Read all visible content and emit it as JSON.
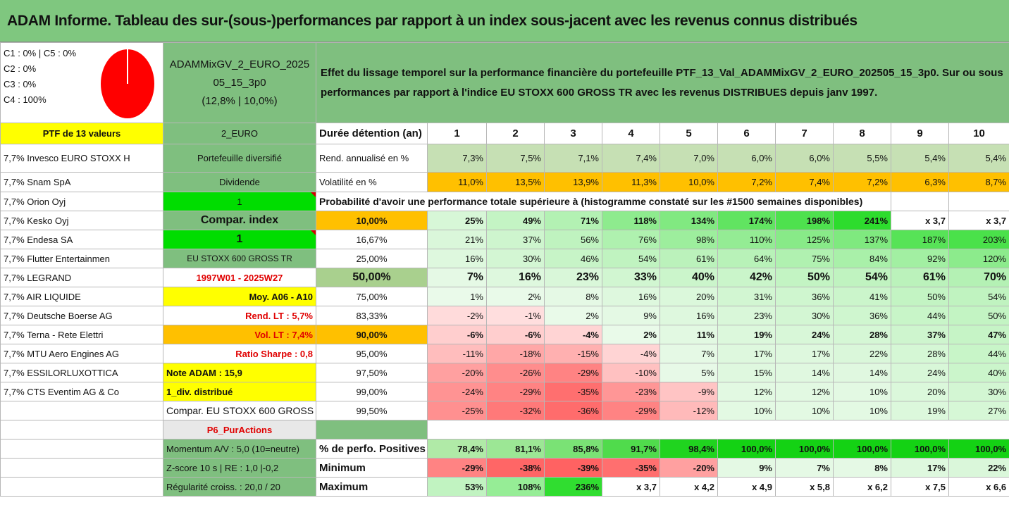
{
  "title": "ADAM Informe. Tableau des sur-(sous-)performances par rapport à un index sous-jacent avec les revenus connus distribués",
  "classes": {
    "line1": "C1 : 0% | C5 : 0%",
    "line2": "C2 : 0%",
    "line3": "C3 : 0%",
    "line4": "C4 : 100%",
    "pie_color": "#ff0000"
  },
  "fund": {
    "name": "ADAMMixGV_2_EURO_202505_15_3p0",
    "perf": "(12,8% | 10,0%)"
  },
  "effect_text": "Effet du lissage temporel sur la performance financière du portefeuille PTF_13_Val_ADAMMixGV_2_EURO_202505_15_3p0. Sur ou sous performances par rapport à l'indice EU STOXX 600 GROSS TR avec les revenus DISTRIBUES depuis janv 1997.",
  "ptf_label": "PTF de 13 valeurs",
  "holdings": [
    "7,7% Invesco EURO STOXX H",
    "7,7% Snam SpA",
    "7,7% Orion Oyj",
    "7,7% Kesko Oyj",
    "7,7% Endesa SA",
    "7,7% Flutter Entertainmen",
    "7,7% LEGRAND",
    "7,7% AIR LIQUIDE",
    "7,7% Deutsche Boerse AG",
    "7,7% Terna - Rete Elettri",
    "7,7% MTU Aero Engines AG",
    "7,7% ESSILORLUXOTTICA",
    "7,7% CTS Eventim AG & Co"
  ],
  "side": {
    "currency": "2_EURO",
    "portfolio_type": "Portefeuille diversifié",
    "dividend_label": "Dividende",
    "dividend_value": "1",
    "compar_label": "Compar. index",
    "compar_value": "1",
    "index_name": "EU STOXX 600 GROSS TR",
    "period": "1997W01 - 2025W27",
    "moy": "Moy. A06 - A10",
    "rend_lt": "Rend. LT : 5,7%",
    "vol_lt": "Vol. LT : 7,4%",
    "sharpe": "Ratio Sharpe : 0,8",
    "note": "Note ADAM : 15,9",
    "div": "1_div. distribué",
    "compar_full": "Compar. EU STOXX 600 GROSS TR",
    "p6": "P6_PurActions",
    "momentum": "Momentum A/V : 5,0 (10=neutre)",
    "zscore": "Z-score 10 s | RE : 1,0 |-0,2",
    "regularite": "Régularité croiss. : 20,0 / 20"
  },
  "stats": {
    "duration_label": "Durée détention (an)",
    "years": [
      "1",
      "2",
      "3",
      "4",
      "5",
      "6",
      "7",
      "8",
      "9",
      "10"
    ],
    "rend_label": "Rend. annualisé en %",
    "rend": [
      "7,3%",
      "7,5%",
      "7,1%",
      "7,4%",
      "7,0%",
      "6,0%",
      "6,0%",
      "5,5%",
      "5,4%",
      "5,4%"
    ],
    "vol_label": "Volatilité en %",
    "vol": [
      "11,0%",
      "13,5%",
      "13,9%",
      "11,3%",
      "10,0%",
      "7,2%",
      "7,4%",
      "7,2%",
      "6,3%",
      "8,7%"
    ],
    "prob_title": "Probabilité d'avoir une performance totale supérieure à (histogramme constaté sur les #1500 semaines disponibles)",
    "prob_rows": [
      {
        "p": "10,00%",
        "v": [
          "25%",
          "49%",
          "71%",
          "118%",
          "134%",
          "174%",
          "198%",
          "241%",
          "x 3,7",
          "x 3,7"
        ]
      },
      {
        "p": "16,67%",
        "v": [
          "21%",
          "37%",
          "56%",
          "76%",
          "98%",
          "110%",
          "125%",
          "137%",
          "187%",
          "203%"
        ]
      },
      {
        "p": "25,00%",
        "v": [
          "16%",
          "30%",
          "46%",
          "54%",
          "61%",
          "64%",
          "75%",
          "84%",
          "92%",
          "120%"
        ]
      },
      {
        "p": "50,00%",
        "v": [
          "7%",
          "16%",
          "23%",
          "33%",
          "40%",
          "42%",
          "50%",
          "54%",
          "61%",
          "70%"
        ]
      },
      {
        "p": "75,00%",
        "v": [
          "1%",
          "2%",
          "8%",
          "16%",
          "20%",
          "31%",
          "36%",
          "41%",
          "50%",
          "54%"
        ]
      },
      {
        "p": "83,33%",
        "v": [
          "-2%",
          "-1%",
          "2%",
          "9%",
          "16%",
          "23%",
          "30%",
          "36%",
          "44%",
          "50%"
        ]
      },
      {
        "p": "90,00%",
        "v": [
          "-6%",
          "-6%",
          "-4%",
          "2%",
          "11%",
          "19%",
          "24%",
          "28%",
          "37%",
          "47%"
        ]
      },
      {
        "p": "95,00%",
        "v": [
          "-11%",
          "-18%",
          "-15%",
          "-4%",
          "7%",
          "17%",
          "17%",
          "22%",
          "28%",
          "44%"
        ]
      },
      {
        "p": "97,50%",
        "v": [
          "-20%",
          "-26%",
          "-29%",
          "-10%",
          "5%",
          "15%",
          "14%",
          "14%",
          "24%",
          "40%"
        ]
      },
      {
        "p": "99,00%",
        "v": [
          "-24%",
          "-29%",
          "-35%",
          "-23%",
          "-9%",
          "12%",
          "12%",
          "10%",
          "20%",
          "30%"
        ]
      },
      {
        "p": "99,50%",
        "v": [
          "-25%",
          "-32%",
          "-36%",
          "-29%",
          "-12%",
          "10%",
          "10%",
          "10%",
          "19%",
          "27%"
        ]
      }
    ],
    "pos_label": "% de perfo. Positives",
    "pos": [
      "78,4%",
      "81,1%",
      "85,8%",
      "91,7%",
      "98,4%",
      "100,0%",
      "100,0%",
      "100,0%",
      "100,0%",
      "100,0%"
    ],
    "min_label": "Minimum",
    "min": [
      "-29%",
      "-38%",
      "-39%",
      "-35%",
      "-20%",
      "9%",
      "7%",
      "8%",
      "17%",
      "22%"
    ],
    "max_label": "Maximum",
    "max": [
      "53%",
      "108%",
      "236%",
      "x 3,7",
      "x 4,2",
      "x 4,9",
      "x 5,8",
      "x 6,2",
      "x 7,5",
      "x 6,6"
    ]
  }
}
